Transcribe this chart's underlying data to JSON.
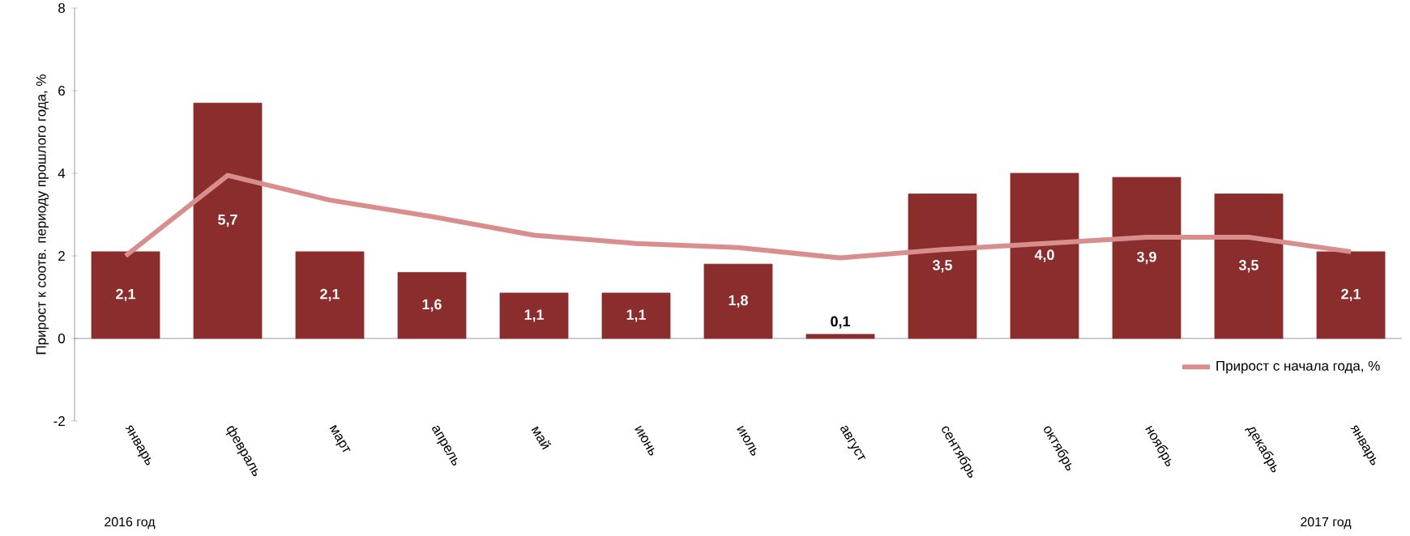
{
  "chart_data": {
    "type": "bar",
    "ylabel": "Прирост к соотв. периоду прошлого года, %",
    "categories": [
      "январь",
      "февраль",
      "март",
      "апрель",
      "май",
      "июнь",
      "июль",
      "август",
      "сентябрь",
      "октябрь",
      "ноябрь",
      "декабрь",
      "январь"
    ],
    "series": [
      {
        "color": "#8b2d2d",
        "values": [
          2.1,
          5.7,
          2.1,
          1.6,
          1.1,
          1.1,
          1.8,
          0.1,
          3.5,
          4.0,
          3.9,
          3.5,
          2.1
        ],
        "value_labels": [
          "2,1",
          "5,7",
          "2,1",
          "1,6",
          "1,1",
          "1,1",
          "1,8",
          "0,1",
          "3,5",
          "4,0",
          "3,9",
          "3,5",
          "2,1"
        ]
      },
      {
        "type": "line",
        "name": "Прирост с начала года, %",
        "color": "#d98e8e",
        "values": [
          2.0,
          3.95,
          3.35,
          2.95,
          2.5,
          2.3,
          2.2,
          1.95,
          2.15,
          2.3,
          2.45,
          2.45,
          2.1
        ]
      }
    ],
    "ylim": [
      -2,
      8
    ],
    "yticks": [
      -2,
      0,
      2,
      4,
      6,
      8
    ],
    "legend": "bottom right",
    "annotations": [
      "2016 год",
      "2017 год"
    ]
  }
}
